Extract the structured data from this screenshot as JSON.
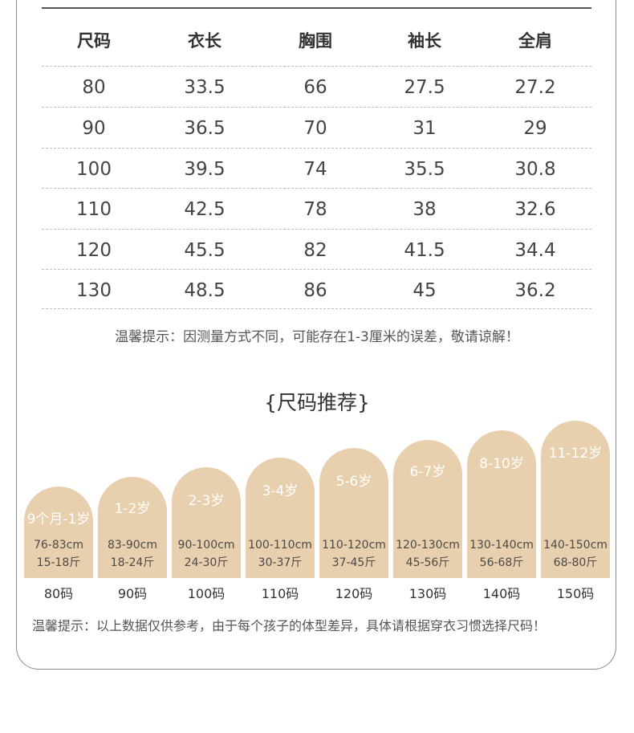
{
  "table": {
    "headers": [
      "尺码",
      "衣长",
      "胸围",
      "袖长",
      "全肩"
    ],
    "rows": [
      [
        "80",
        "33.5",
        "66",
        "27.5",
        "27.2"
      ],
      [
        "90",
        "36.5",
        "70",
        "31",
        "29"
      ],
      [
        "100",
        "39.5",
        "74",
        "35.5",
        "30.8"
      ],
      [
        "110",
        "42.5",
        "78",
        "38",
        "32.6"
      ],
      [
        "120",
        "45.5",
        "82",
        "41.5",
        "34.4"
      ],
      [
        "130",
        "48.5",
        "86",
        "45",
        "36.2"
      ]
    ]
  },
  "note1": "温馨提示：因测量方式不同，可能存在1-3厘米的误差，敬请谅解！",
  "recommend": {
    "title": "{尺码推荐}",
    "items": [
      {
        "age": "9个月-1岁",
        "height": "76-83cm",
        "weight": "15-18斤",
        "size": "80码"
      },
      {
        "age": "1-2岁",
        "height": "83-90cm",
        "weight": "18-24斤",
        "size": "90码"
      },
      {
        "age": "2-3岁",
        "height": "90-100cm",
        "weight": "24-30斤",
        "size": "100码"
      },
      {
        "age": "3-4岁",
        "height": "100-110cm",
        "weight": "30-37斤",
        "size": "110码"
      },
      {
        "age": "5-6岁",
        "height": "110-120cm",
        "weight": "37-45斤",
        "size": "120码"
      },
      {
        "age": "6-7岁",
        "height": "120-130cm",
        "weight": "45-56斤",
        "size": "130码"
      },
      {
        "age": "8-10岁",
        "height": "130-140cm",
        "weight": "56-68斤",
        "size": "140码"
      },
      {
        "age": "11-12岁",
        "height": "140-150cm",
        "weight": "68-80斤",
        "size": "150码"
      }
    ]
  },
  "note2": "温馨提示：以上数据仅供参考，由于每个孩子的体型差异，具体请根据穿衣习惯选择尺码！",
  "colors": {
    "arch": "#e8cfae",
    "text": "#3a3a3a",
    "divider": "#bdbdbd"
  }
}
